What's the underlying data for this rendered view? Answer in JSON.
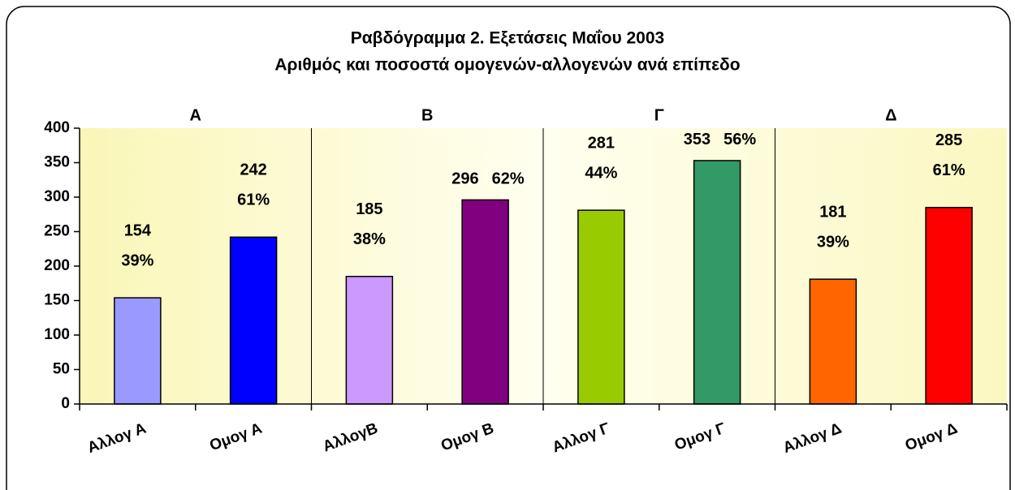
{
  "chart_data": {
    "type": "bar",
    "title": "Ραβδόγραμμα 2. Εξετάσεις Μαΐου 2003",
    "subtitle": "Αριθμός και ποσοστά ομογενών-αλλογενών ανά επίπεδο",
    "groups": [
      "Α",
      "Β",
      "Γ",
      "Δ"
    ],
    "categories": [
      "Αλλογ Α",
      "Ομογ Α",
      "ΑλλογΒ",
      "Ομογ Β",
      "Αλλογ Γ",
      "Ομογ Γ",
      "Αλλογ Δ",
      "Ομογ Δ"
    ],
    "values": [
      154,
      242,
      185,
      296,
      281,
      353,
      181,
      285
    ],
    "percent_labels": [
      "39%",
      "61%",
      "38%",
      "62%",
      "44%",
      "56%",
      "39%",
      "61%"
    ],
    "colors": [
      "#9999ff",
      "#0000ff",
      "#cc99ff",
      "#800080",
      "#99cc00",
      "#339966",
      "#ff6600",
      "#ff0000"
    ],
    "ylim": [
      0,
      400
    ],
    "yticks": [
      0,
      50,
      100,
      150,
      200,
      250,
      300,
      350,
      400
    ]
  }
}
